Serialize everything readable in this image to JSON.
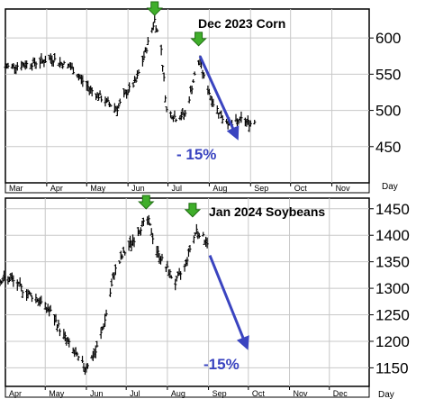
{
  "colors": {
    "bars": "#000000",
    "grid": "#c8c8c8",
    "annotation_arrow": "#3a44c0",
    "annotation_text": "#3a44c0",
    "peak_marker": "#3fae2a",
    "peak_marker_outline": "#1f6d12",
    "frame": "#000000"
  },
  "chart_data": [
    {
      "type": "ohlc",
      "title": "Dec 2023 Corn",
      "xlabel": "Day",
      "x_tick_labels": [
        "Mar",
        "Apr",
        "May",
        "Jun",
        "Jul",
        "Aug",
        "Sep",
        "Oct",
        "Nov"
      ],
      "y_ticks": [
        450,
        500,
        550,
        600
      ],
      "ylim": [
        400,
        640
      ],
      "grid": true,
      "annotation": {
        "text": "- 15%",
        "from": [
          "2023-07-25",
          575
        ],
        "to": [
          "2023-08-22",
          462
        ]
      },
      "peak_markers": [
        [
          "2023-06-21",
          630
        ],
        [
          "2023-07-24",
          588
        ]
      ],
      "series": [
        {
          "closes": [
            [
              "2023-03-01",
              560
            ],
            [
              "2023-03-15",
              563
            ],
            [
              "2023-03-29",
              568
            ],
            [
              "2023-04-05",
              572
            ],
            [
              "2023-04-12",
              565
            ],
            [
              "2023-04-19",
              560
            ],
            [
              "2023-04-26",
              545
            ],
            [
              "2023-05-03",
              530
            ],
            [
              "2023-05-10",
              520
            ],
            [
              "2023-05-17",
              510
            ],
            [
              "2023-05-24",
              503
            ],
            [
              "2023-05-31",
              525
            ],
            [
              "2023-06-07",
              540
            ],
            [
              "2023-06-14",
              580
            ],
            [
              "2023-06-21",
              625
            ],
            [
              "2023-06-26",
              585
            ],
            [
              "2023-06-30",
              500
            ],
            [
              "2023-07-07",
              490
            ],
            [
              "2023-07-14",
              495
            ],
            [
              "2023-07-21",
              548
            ],
            [
              "2023-07-25",
              570
            ],
            [
              "2023-07-28",
              545
            ],
            [
              "2023-08-04",
              510
            ],
            [
              "2023-08-11",
              490
            ],
            [
              "2023-08-18",
              480
            ],
            [
              "2023-08-25",
              487
            ],
            [
              "2023-09-01",
              482
            ],
            [
              "2023-09-05",
              486
            ]
          ]
        }
      ]
    },
    {
      "type": "ohlc",
      "title": "Jan 2024 Soybeans",
      "xlabel": "Day",
      "x_tick_labels": [
        "Apr",
        "May",
        "Jun",
        "Jul",
        "Aug",
        "Sep",
        "Oct",
        "Nov",
        "Dec"
      ],
      "y_ticks": [
        1150,
        1200,
        1250,
        1300,
        1350,
        1400,
        1450
      ],
      "ylim": [
        1115,
        1470
      ],
      "grid": true,
      "annotation": {
        "text": "-15%",
        "from": [
          "2023-09-02",
          1362
        ],
        "to": [
          "2023-09-30",
          1188
        ]
      },
      "peak_markers": [
        [
          "2023-07-16",
          1448
        ],
        [
          "2023-08-20",
          1433
        ]
      ],
      "series": [
        {
          "closes": [
            [
              "2023-03-25",
              1315
            ],
            [
              "2023-04-05",
              1318
            ],
            [
              "2023-04-15",
              1295
            ],
            [
              "2023-04-25",
              1280
            ],
            [
              "2023-05-05",
              1255
            ],
            [
              "2023-05-15",
              1210
            ],
            [
              "2023-05-25",
              1170
            ],
            [
              "2023-05-31",
              1150
            ],
            [
              "2023-06-08",
              1180
            ],
            [
              "2023-06-15",
              1240
            ],
            [
              "2023-06-22",
              1330
            ],
            [
              "2023-06-29",
              1365
            ],
            [
              "2023-07-06",
              1390
            ],
            [
              "2023-07-13",
              1420
            ],
            [
              "2023-07-18",
              1425
            ],
            [
              "2023-07-24",
              1370
            ],
            [
              "2023-07-31",
              1340
            ],
            [
              "2023-08-07",
              1310
            ],
            [
              "2023-08-14",
              1340
            ],
            [
              "2023-08-18",
              1375
            ],
            [
              "2023-08-23",
              1410
            ],
            [
              "2023-08-28",
              1395
            ],
            [
              "2023-09-01",
              1385
            ]
          ]
        }
      ]
    }
  ]
}
